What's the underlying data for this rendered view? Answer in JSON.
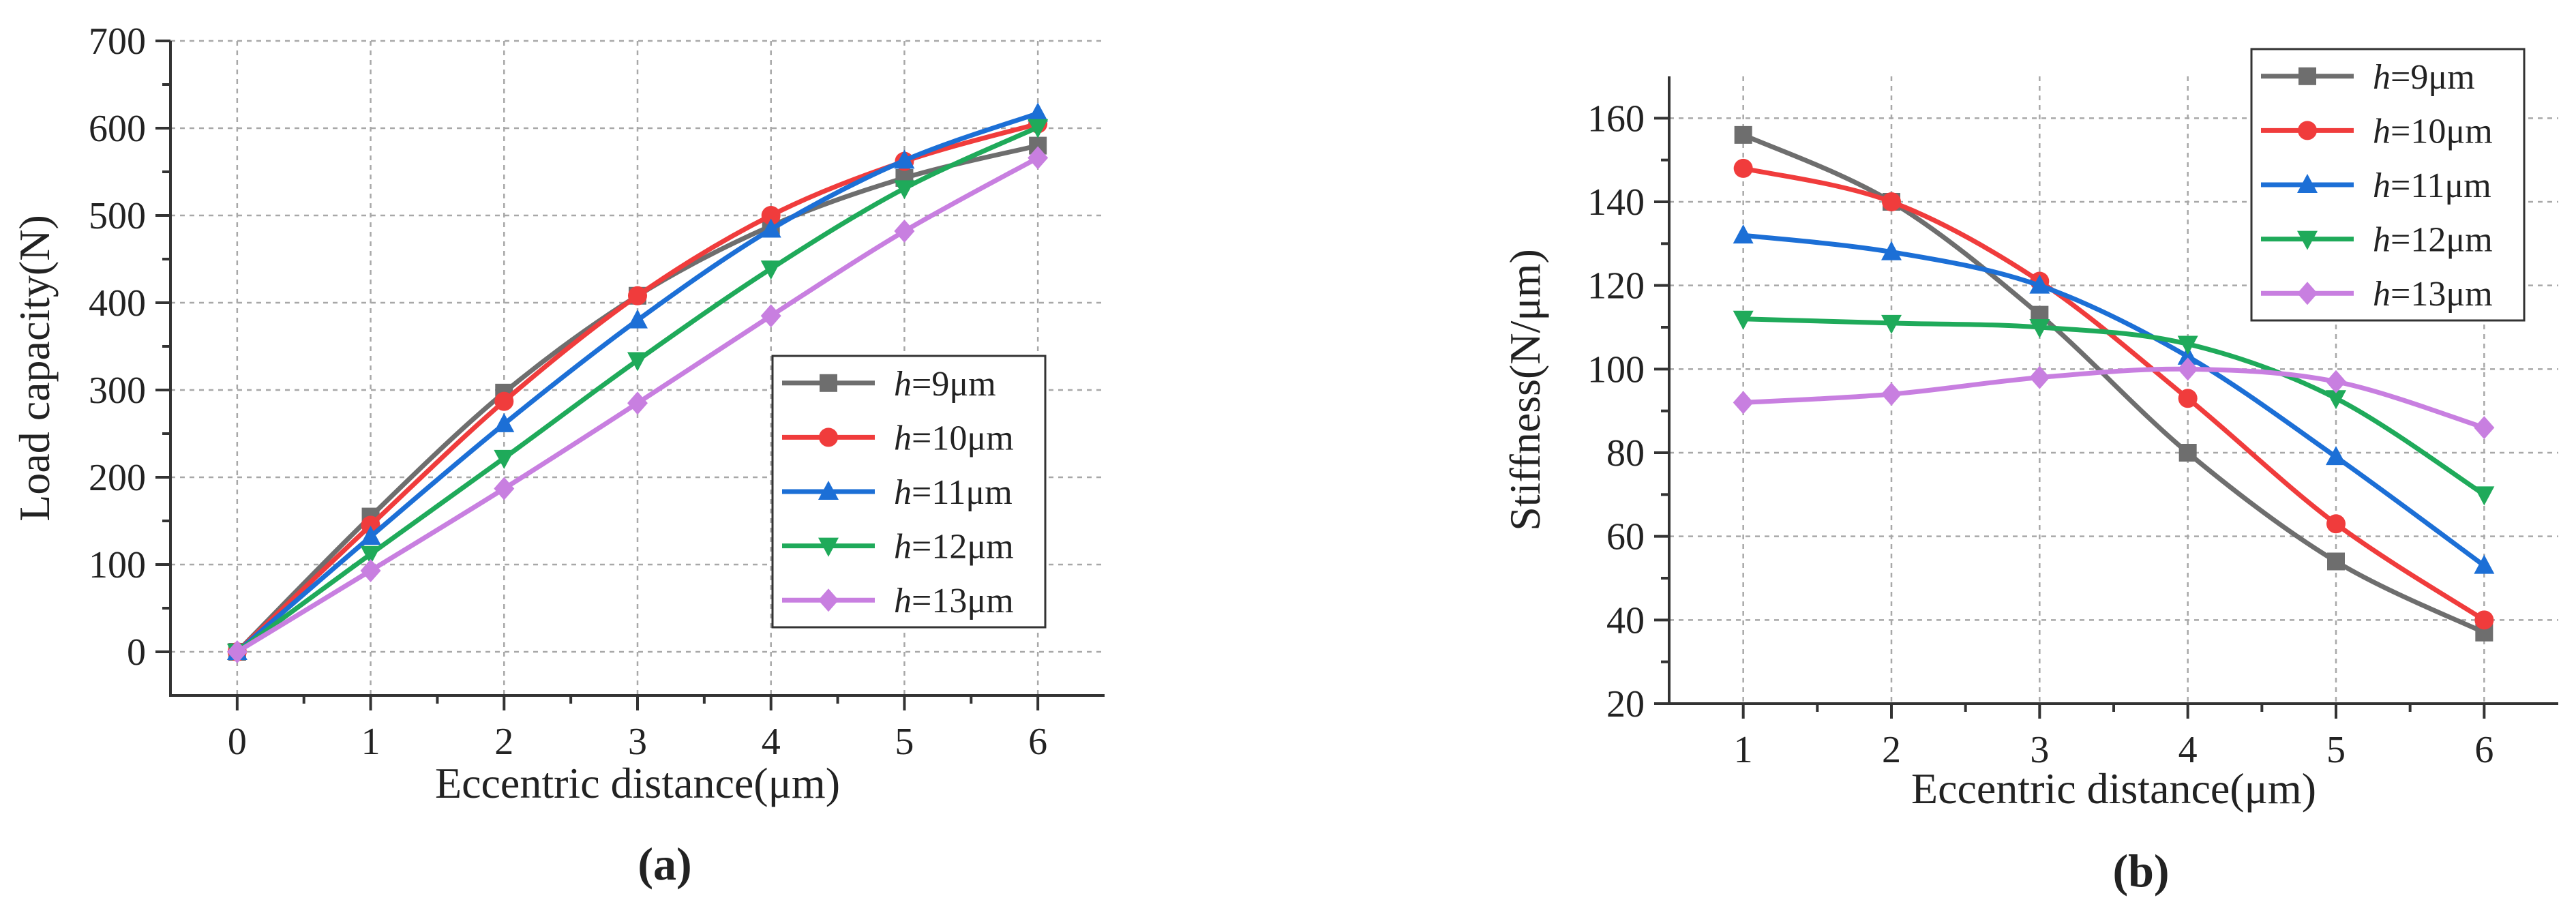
{
  "chart_data": [
    {
      "panel": "a",
      "panel_label": "(a)",
      "type": "line",
      "title": "",
      "xlabel": "Eccentric distance(μm)",
      "ylabel": "Load capacity(N)",
      "xlim": [
        -0.5,
        6.5
      ],
      "ylim": [
        -50,
        700
      ],
      "xticks": [
        0,
        1,
        2,
        3,
        4,
        5,
        6
      ],
      "yticks": [
        0,
        100,
        200,
        300,
        400,
        500,
        600,
        700
      ],
      "grid": true,
      "legend_position": "center-right",
      "x": [
        0,
        1,
        2,
        3,
        4,
        5,
        6
      ],
      "series": [
        {
          "name": "h=9μm",
          "italic": "h",
          "rest": "=9μm",
          "color": "#6e6e6e",
          "marker": "square",
          "values": [
            0,
            155,
            297,
            408,
            488,
            543,
            580
          ]
        },
        {
          "name": "h=10μm",
          "italic": "h",
          "rest": "=10μm",
          "color": "#f03c3c",
          "marker": "circle",
          "values": [
            0,
            145,
            287,
            408,
            500,
            562,
            605
          ]
        },
        {
          "name": "h=11μm",
          "italic": "h",
          "rest": "=11μm",
          "color": "#1c6fd6",
          "marker": "triangle-up",
          "values": [
            0,
            132,
            261,
            380,
            484,
            563,
            617
          ]
        },
        {
          "name": "h=12μm",
          "italic": "h",
          "rest": "=12μm",
          "color": "#1faa5a",
          "marker": "triangle-down",
          "values": [
            0,
            112,
            222,
            334,
            439,
            531,
            601
          ]
        },
        {
          "name": "h=13μm",
          "italic": "h",
          "rest": "=13μm",
          "color": "#c87fe0",
          "marker": "diamond",
          "values": [
            0,
            93,
            187,
            285,
            385,
            482,
            566
          ]
        }
      ]
    },
    {
      "panel": "b",
      "panel_label": "(b)",
      "type": "line",
      "title": "",
      "xlabel": "Eccentric distance(μm)",
      "ylabel": "Stiffness(N/μm)",
      "xlim": [
        0.5,
        6.5
      ],
      "ylim": [
        20,
        170
      ],
      "xticks": [
        1,
        2,
        3,
        4,
        5,
        6
      ],
      "yticks": [
        20,
        40,
        60,
        80,
        100,
        120,
        140,
        160
      ],
      "grid": true,
      "legend_position": "top-right",
      "x": [
        1,
        2,
        3,
        4,
        5,
        6
      ],
      "series": [
        {
          "name": "h=9μm",
          "italic": "h",
          "rest": "=9μm",
          "color": "#6e6e6e",
          "marker": "square",
          "values": [
            156,
            140,
            113,
            80,
            54,
            37
          ]
        },
        {
          "name": "h=10μm",
          "italic": "h",
          "rest": "=10μm",
          "color": "#f03c3c",
          "marker": "circle",
          "values": [
            148,
            140,
            121,
            93,
            63,
            40
          ]
        },
        {
          "name": "h=11μm",
          "italic": "h",
          "rest": "=11μm",
          "color": "#1c6fd6",
          "marker": "triangle-up",
          "values": [
            132,
            128,
            120,
            103,
            79,
            53
          ]
        },
        {
          "name": "h=12μm",
          "italic": "h",
          "rest": "=12μm",
          "color": "#1faa5a",
          "marker": "triangle-down",
          "values": [
            112,
            111,
            110,
            106,
            93,
            70
          ]
        },
        {
          "name": "h=13μm",
          "italic": "h",
          "rest": "=13μm",
          "color": "#c87fe0",
          "marker": "diamond",
          "values": [
            92,
            94,
            98,
            100,
            97,
            86
          ]
        }
      ]
    }
  ]
}
